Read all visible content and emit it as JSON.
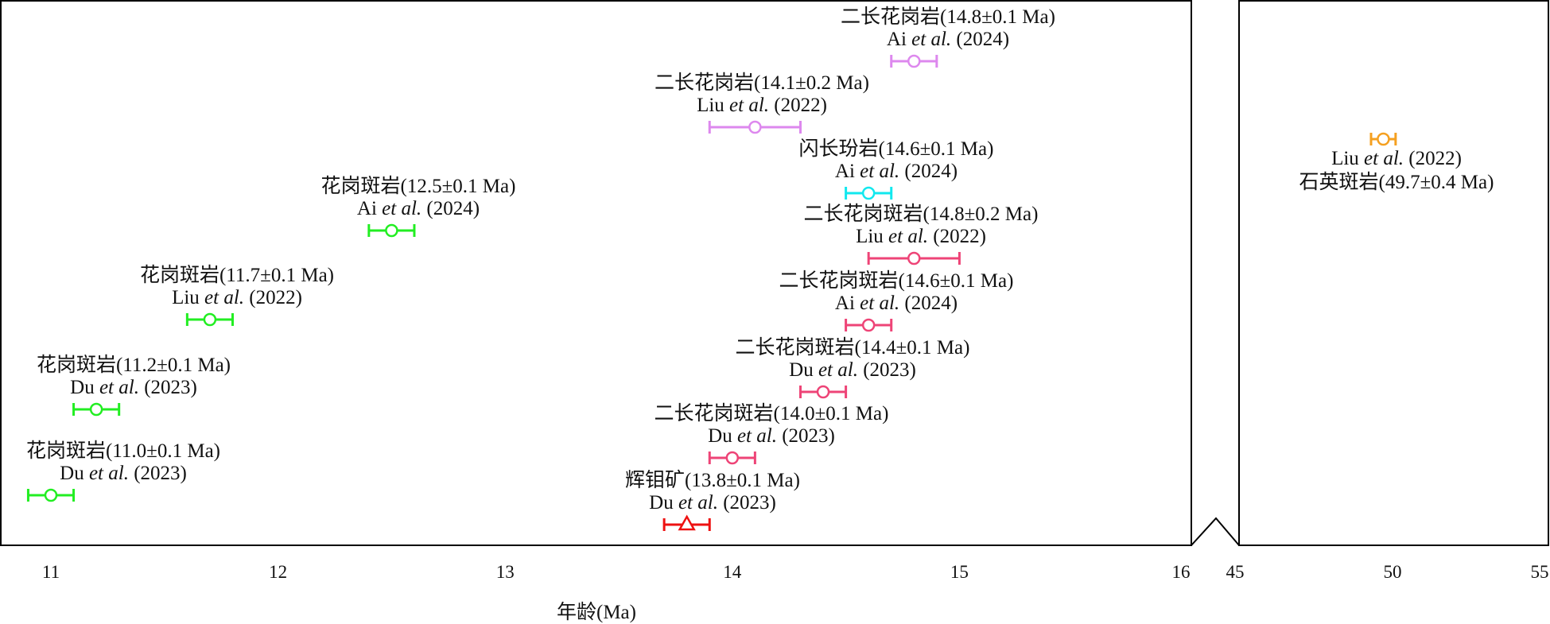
{
  "chart_data": {
    "type": "scatter",
    "xlabel": "年龄(Ma)",
    "x_break": true,
    "panels": [
      {
        "xlim": [
          10.8,
          16
        ],
        "ticks": [
          "11",
          "12",
          "13",
          "14",
          "15",
          "16"
        ]
      },
      {
        "xlim": [
          45,
          55
        ],
        "ticks": [
          "45",
          "50",
          "55"
        ]
      }
    ],
    "series": [
      {
        "panel": 0,
        "age": 14.8,
        "err": 0.1,
        "color": "#dd88ee",
        "marker": "circle",
        "rock": "二长花岗岩(14.8±0.1 Ma)",
        "ref_author": "Ai",
        "ref_year": "(2024)"
      },
      {
        "panel": 0,
        "age": 14.1,
        "err": 0.2,
        "color": "#dd88ee",
        "marker": "circle",
        "rock": "二长花岗岩(14.1±0.2 Ma)",
        "ref_author": "Liu",
        "ref_year": "(2022)"
      },
      {
        "panel": 0,
        "age": 14.6,
        "err": 0.1,
        "color": "#11e8ee",
        "marker": "circle",
        "rock": "闪长玢岩(14.6±0.1 Ma)",
        "ref_author": "Ai",
        "ref_year": "(2024)"
      },
      {
        "panel": 0,
        "age": 12.5,
        "err": 0.1,
        "color": "#22ee22",
        "marker": "circle",
        "rock": "花岗斑岩(12.5±0.1 Ma)",
        "ref_author": "Ai",
        "ref_year": "(2024)"
      },
      {
        "panel": 0,
        "age": 14.8,
        "err": 0.2,
        "color": "#ee4477",
        "marker": "circle",
        "rock": "二长花岗斑岩(14.8±0.2 Ma)",
        "ref_author": "Liu",
        "ref_year": "(2022)"
      },
      {
        "panel": 0,
        "age": 11.7,
        "err": 0.1,
        "color": "#22ee22",
        "marker": "circle",
        "rock": "花岗斑岩(11.7±0.1 Ma)",
        "ref_author": "Liu",
        "ref_year": "(2022)"
      },
      {
        "panel": 0,
        "age": 14.6,
        "err": 0.1,
        "color": "#ee4477",
        "marker": "circle",
        "rock": "二长花岗斑岩(14.6±0.1 Ma)",
        "ref_author": "Ai",
        "ref_year": "(2024)"
      },
      {
        "panel": 0,
        "age": 11.2,
        "err": 0.1,
        "color": "#22ee22",
        "marker": "circle",
        "rock": "花岗斑岩(11.2±0.1 Ma)",
        "ref_author": "Du",
        "ref_year": "(2023)"
      },
      {
        "panel": 0,
        "age": 14.4,
        "err": 0.1,
        "color": "#ee4477",
        "marker": "circle",
        "rock": "二长花岗斑岩(14.4±0.1 Ma)",
        "ref_author": "Du",
        "ref_year": "(2023)"
      },
      {
        "panel": 0,
        "age": 11.0,
        "err": 0.1,
        "color": "#22ee22",
        "marker": "circle",
        "rock": "花岗斑岩(11.0±0.1 Ma)",
        "ref_author": "Du",
        "ref_year": "(2023)"
      },
      {
        "panel": 0,
        "age": 14.0,
        "err": 0.1,
        "color": "#ee4477",
        "marker": "circle",
        "rock": "二长花岗斑岩(14.0±0.1 Ma)",
        "ref_author": "Du",
        "ref_year": "(2023)"
      },
      {
        "panel": 0,
        "age": 13.8,
        "err": 0.1,
        "color": "#ee1111",
        "marker": "triangle",
        "rock": "辉钼矿(13.8±0.1 Ma)",
        "ref_author": "Du",
        "ref_year": "(2023)"
      },
      {
        "panel": 1,
        "age": 49.7,
        "err": 0.4,
        "color": "#f5a020",
        "marker": "circle",
        "rock": "石英斑岩(49.7±0.4 Ma)",
        "ref_author": "Liu",
        "ref_year": "(2022)"
      }
    ],
    "et_al": "et al."
  }
}
